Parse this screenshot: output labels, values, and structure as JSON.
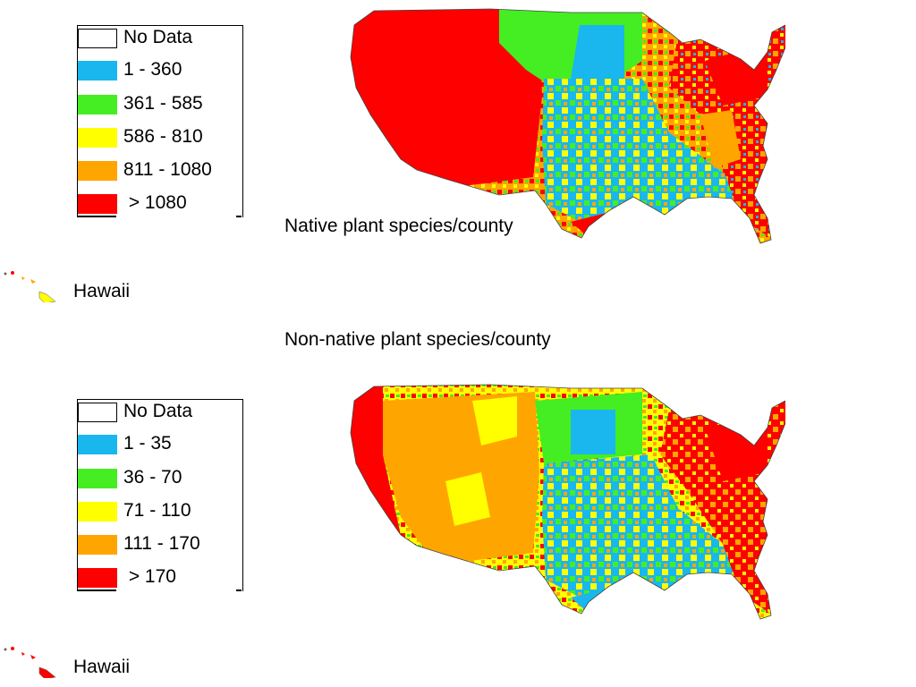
{
  "colors": {
    "no_data": "#ffffff",
    "blue": "#19b7ee",
    "green": "#44ee22",
    "yellow": "#ffff00",
    "orange": "#ffa500",
    "red": "#ff0000"
  },
  "maps": [
    {
      "title": "Native plant species/county",
      "hawaii_label": "Hawaii",
      "legend": [
        {
          "label": "No Data",
          "color": "no_data"
        },
        {
          "label": "1 - 360",
          "color": "blue"
        },
        {
          "label": "361 - 585",
          "color": "green"
        },
        {
          "label": "586 - 810",
          "color": "yellow"
        },
        {
          "label": "811 - 1080",
          "color": "orange"
        },
        {
          "label": " > 1080",
          "color": "red"
        }
      ]
    },
    {
      "title": "Non-native plant species/county",
      "hawaii_label": "Hawaii",
      "legend": [
        {
          "label": "No Data",
          "color": "no_data"
        },
        {
          "label": "1 - 35",
          "color": "blue"
        },
        {
          "label": "36 - 70",
          "color": "green"
        },
        {
          "label": "71 - 110",
          "color": "yellow"
        },
        {
          "label": "111 - 170",
          "color": "orange"
        },
        {
          "label": " > 170",
          "color": "red"
        }
      ]
    }
  ]
}
